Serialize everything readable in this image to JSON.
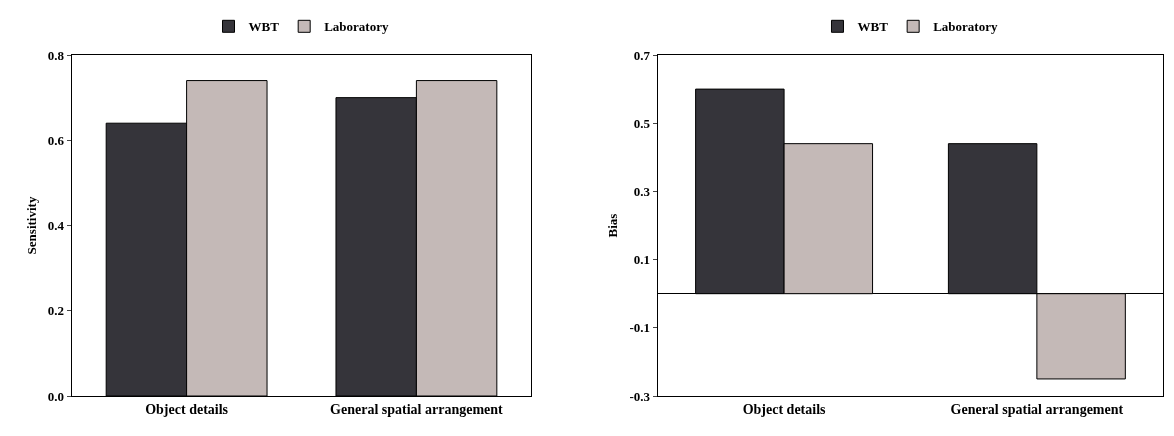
{
  "chart_data": [
    {
      "type": "bar",
      "ylabel": "Sensitivity",
      "categories": [
        "Object details",
        "General spatial arrangement"
      ],
      "series": [
        {
          "name": "WBT",
          "color": "#35343a",
          "values": [
            0.64,
            0.7
          ]
        },
        {
          "name": "Laboratory",
          "color": "#c4b9b7",
          "values": [
            0.74,
            0.74
          ]
        }
      ],
      "ylim": [
        0,
        0.8
      ],
      "yticks": [
        {
          "value": 0,
          "label": "0.0"
        },
        0.2,
        0.4,
        0.6,
        0.8
      ],
      "legend": "top"
    },
    {
      "type": "bar",
      "ylabel": "Bias",
      "categories": [
        "Object details",
        "General spatial arrangement"
      ],
      "series": [
        {
          "name": "WBT",
          "color": "#35343a",
          "values": [
            0.6,
            0.44
          ]
        },
        {
          "name": "Laboratory",
          "color": "#c4b9b7",
          "values": [
            0.44,
            -0.25
          ]
        }
      ],
      "ylim": [
        -0.3,
        0.7
      ],
      "yticks": [
        -0.3,
        -0.1,
        0.1,
        0.3,
        0.5,
        0.7
      ],
      "legend": "top"
    }
  ]
}
